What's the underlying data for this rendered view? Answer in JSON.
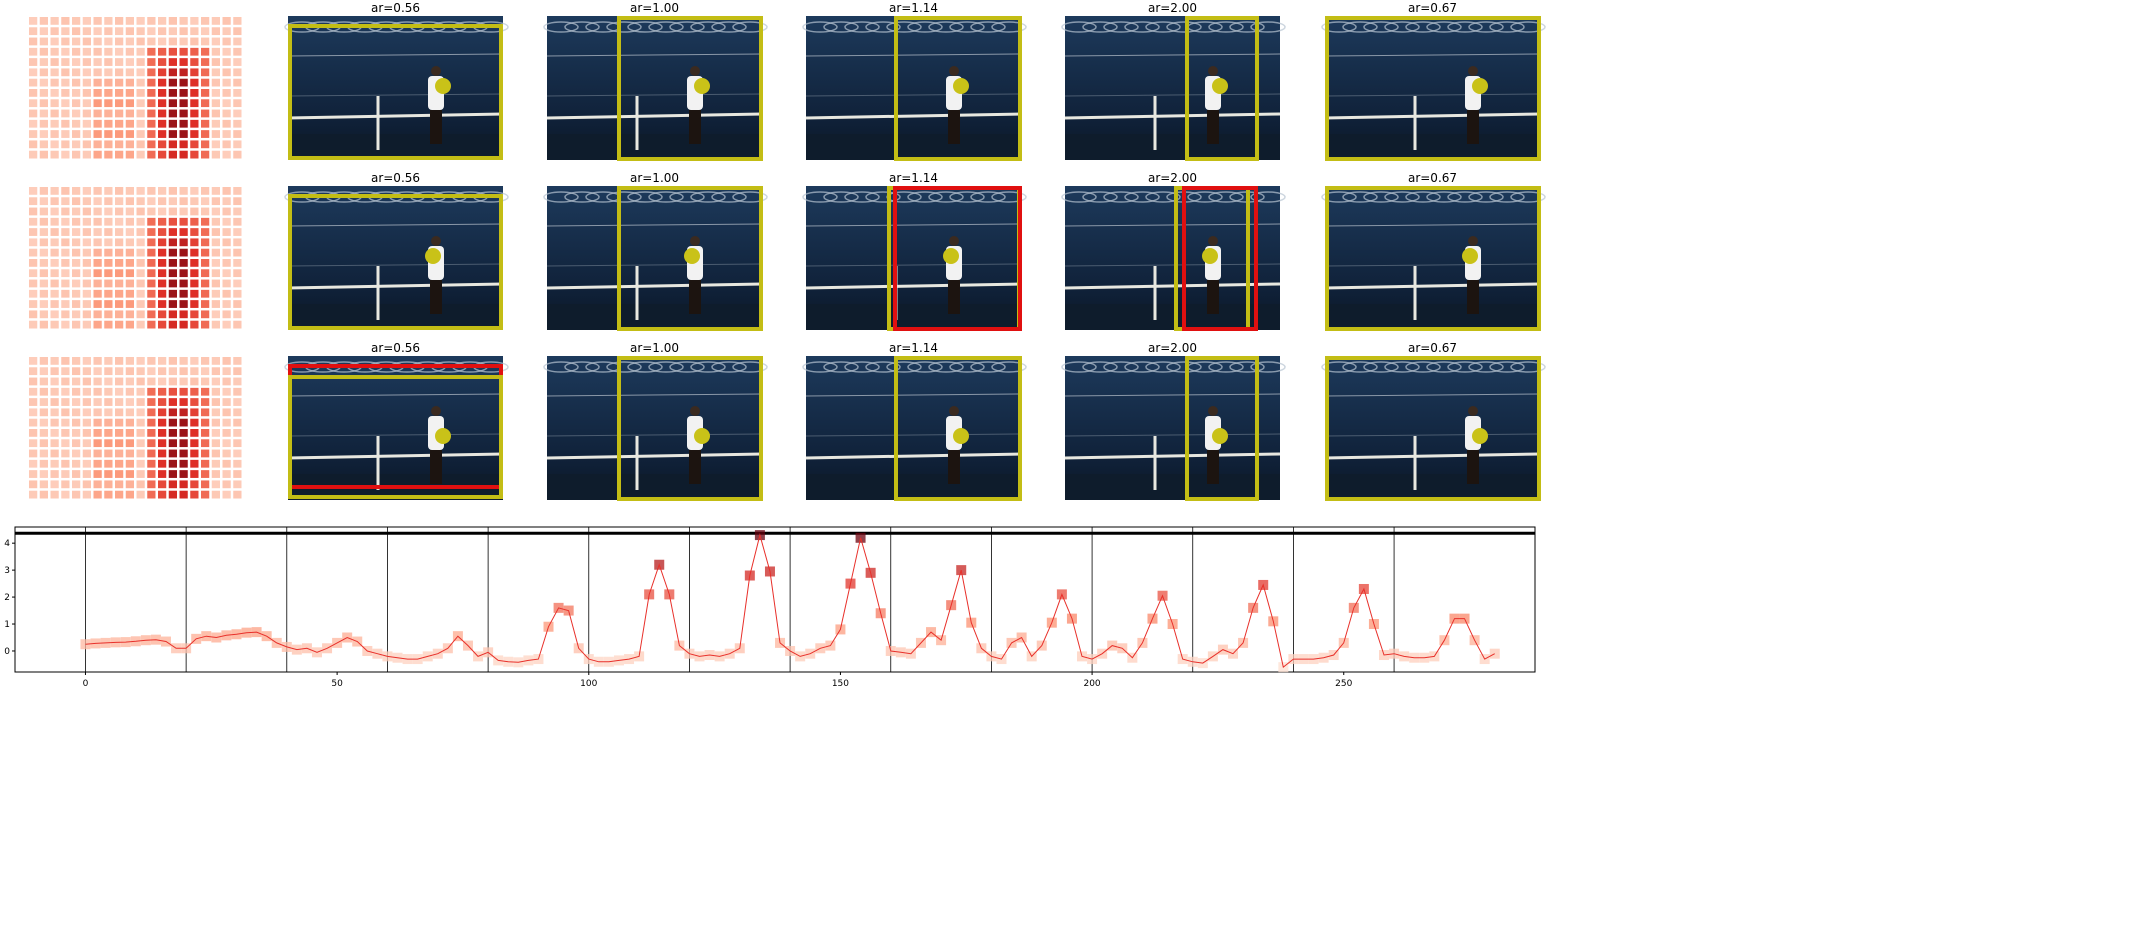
{
  "panels": {
    "titles": [
      [
        "ar=0.56",
        "ar=1.00",
        "ar=1.14",
        "ar=2.00",
        "ar=0.67"
      ],
      [
        "ar=0.56",
        "ar=1.00",
        "ar=1.14",
        "ar=2.00",
        "ar=0.67"
      ],
      [
        "ar=0.56",
        "ar=1.00",
        "ar=1.14",
        "ar=2.00",
        "ar=0.67"
      ]
    ]
  },
  "chart_data": {
    "type": "line",
    "color": "#e8302a",
    "x": [
      0,
      2,
      4,
      6,
      8,
      10,
      12,
      14,
      16,
      18,
      20,
      22,
      24,
      26,
      28,
      30,
      32,
      34,
      36,
      38,
      40,
      42,
      44,
      46,
      48,
      50,
      52,
      54,
      56,
      58,
      60,
      62,
      64,
      66,
      68,
      70,
      72,
      74,
      76,
      78,
      80,
      82,
      84,
      86,
      88,
      90,
      92,
      94,
      96,
      98,
      100,
      102,
      104,
      106,
      108,
      110,
      112,
      114,
      116,
      118,
      120,
      122,
      124,
      126,
      128,
      130,
      132,
      134,
      136,
      138,
      140,
      142,
      144,
      146,
      148,
      150,
      152,
      154,
      156,
      158,
      160,
      162,
      164,
      166,
      168,
      170,
      172,
      174,
      176,
      178,
      180,
      182,
      184,
      186,
      188,
      190,
      192,
      194,
      196,
      198,
      200,
      202,
      204,
      206,
      208,
      210,
      212,
      214,
      216,
      218,
      220,
      222,
      224,
      226,
      228,
      230,
      232,
      234,
      236,
      238,
      240,
      242,
      244,
      246,
      248,
      250,
      252,
      254,
      256,
      258,
      260,
      262,
      264,
      266,
      268,
      270,
      272,
      274,
      276,
      278,
      280
    ],
    "values": [
      0.25,
      0.28,
      0.3,
      0.32,
      0.33,
      0.36,
      0.4,
      0.42,
      0.35,
      0.1,
      0.1,
      0.45,
      0.55,
      0.5,
      0.58,
      0.62,
      0.68,
      0.7,
      0.55,
      0.3,
      0.15,
      0.05,
      0.1,
      -0.05,
      0.1,
      0.3,
      0.5,
      0.35,
      0.0,
      -0.1,
      -0.2,
      -0.25,
      -0.3,
      -0.3,
      -0.2,
      -0.1,
      0.1,
      0.55,
      0.2,
      -0.2,
      -0.05,
      -0.35,
      -0.4,
      -0.42,
      -0.35,
      -0.3,
      0.9,
      1.6,
      1.5,
      0.1,
      -0.3,
      -0.4,
      -0.4,
      -0.35,
      -0.3,
      -0.2,
      2.1,
      3.2,
      2.1,
      0.2,
      -0.1,
      -0.2,
      -0.15,
      -0.2,
      -0.1,
      0.1,
      2.8,
      4.3,
      2.95,
      0.3,
      0.0,
      -0.2,
      -0.1,
      0.1,
      0.2,
      0.8,
      2.5,
      4.2,
      2.9,
      1.4,
      0.0,
      -0.05,
      -0.1,
      0.3,
      0.7,
      0.4,
      1.7,
      3.0,
      1.05,
      0.1,
      -0.2,
      -0.3,
      0.3,
      0.5,
      -0.2,
      0.2,
      1.05,
      2.1,
      1.2,
      -0.2,
      -0.3,
      -0.1,
      0.2,
      0.1,
      -0.25,
      0.3,
      1.2,
      2.05,
      1.0,
      -0.3,
      -0.4,
      -0.45,
      -0.2,
      0.05,
      -0.1,
      0.3,
      1.6,
      2.45,
      1.1,
      -0.6,
      -0.3,
      -0.3,
      -0.3,
      -0.25,
      -0.15,
      0.3,
      1.6,
      2.3,
      1.0,
      -0.15,
      -0.1,
      -0.2,
      -0.25,
      -0.25,
      -0.2,
      0.4,
      1.2,
      1.2,
      0.4,
      -0.3,
      -0.1
    ],
    "xlim": [
      -14,
      288
    ],
    "ylim": [
      -0.78,
      4.6
    ],
    "xticks": [
      0,
      50,
      100,
      150,
      200,
      250
    ],
    "yticks": [
      0,
      1,
      2,
      3,
      4
    ],
    "vlines": [
      0,
      20,
      40,
      60,
      80,
      100,
      120,
      140,
      160,
      180,
      200,
      220,
      240,
      260
    ],
    "hline": 4.37
  }
}
